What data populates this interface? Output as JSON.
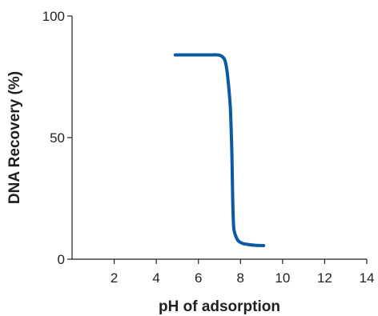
{
  "chart_data": {
    "type": "line",
    "xlabel": "pH of adsorption",
    "ylabel": "DNA Recovery (%)",
    "xlim": [
      0,
      14
    ],
    "ylim": [
      0,
      100
    ],
    "x_ticks": [
      "2",
      "4",
      "6",
      "8",
      "10",
      "12",
      "14"
    ],
    "y_ticks": [
      "0",
      "50",
      "100"
    ],
    "grid": false,
    "legend": "none",
    "series": [
      {
        "color": "#0b5aa5",
        "x": [
          4.9,
          5.5,
          6.0,
          6.5,
          6.9,
          7.1,
          7.25,
          7.35,
          7.45,
          7.52,
          7.57,
          7.6,
          7.63,
          7.67,
          7.72,
          7.8,
          7.9,
          8.1,
          8.4,
          8.7,
          9.1
        ],
        "y": [
          84,
          84,
          84,
          84,
          84,
          83.5,
          82,
          78,
          70,
          62,
          50,
          40,
          25,
          14,
          11,
          9,
          7.5,
          6.5,
          6,
          5.7,
          5.6
        ]
      }
    ]
  }
}
